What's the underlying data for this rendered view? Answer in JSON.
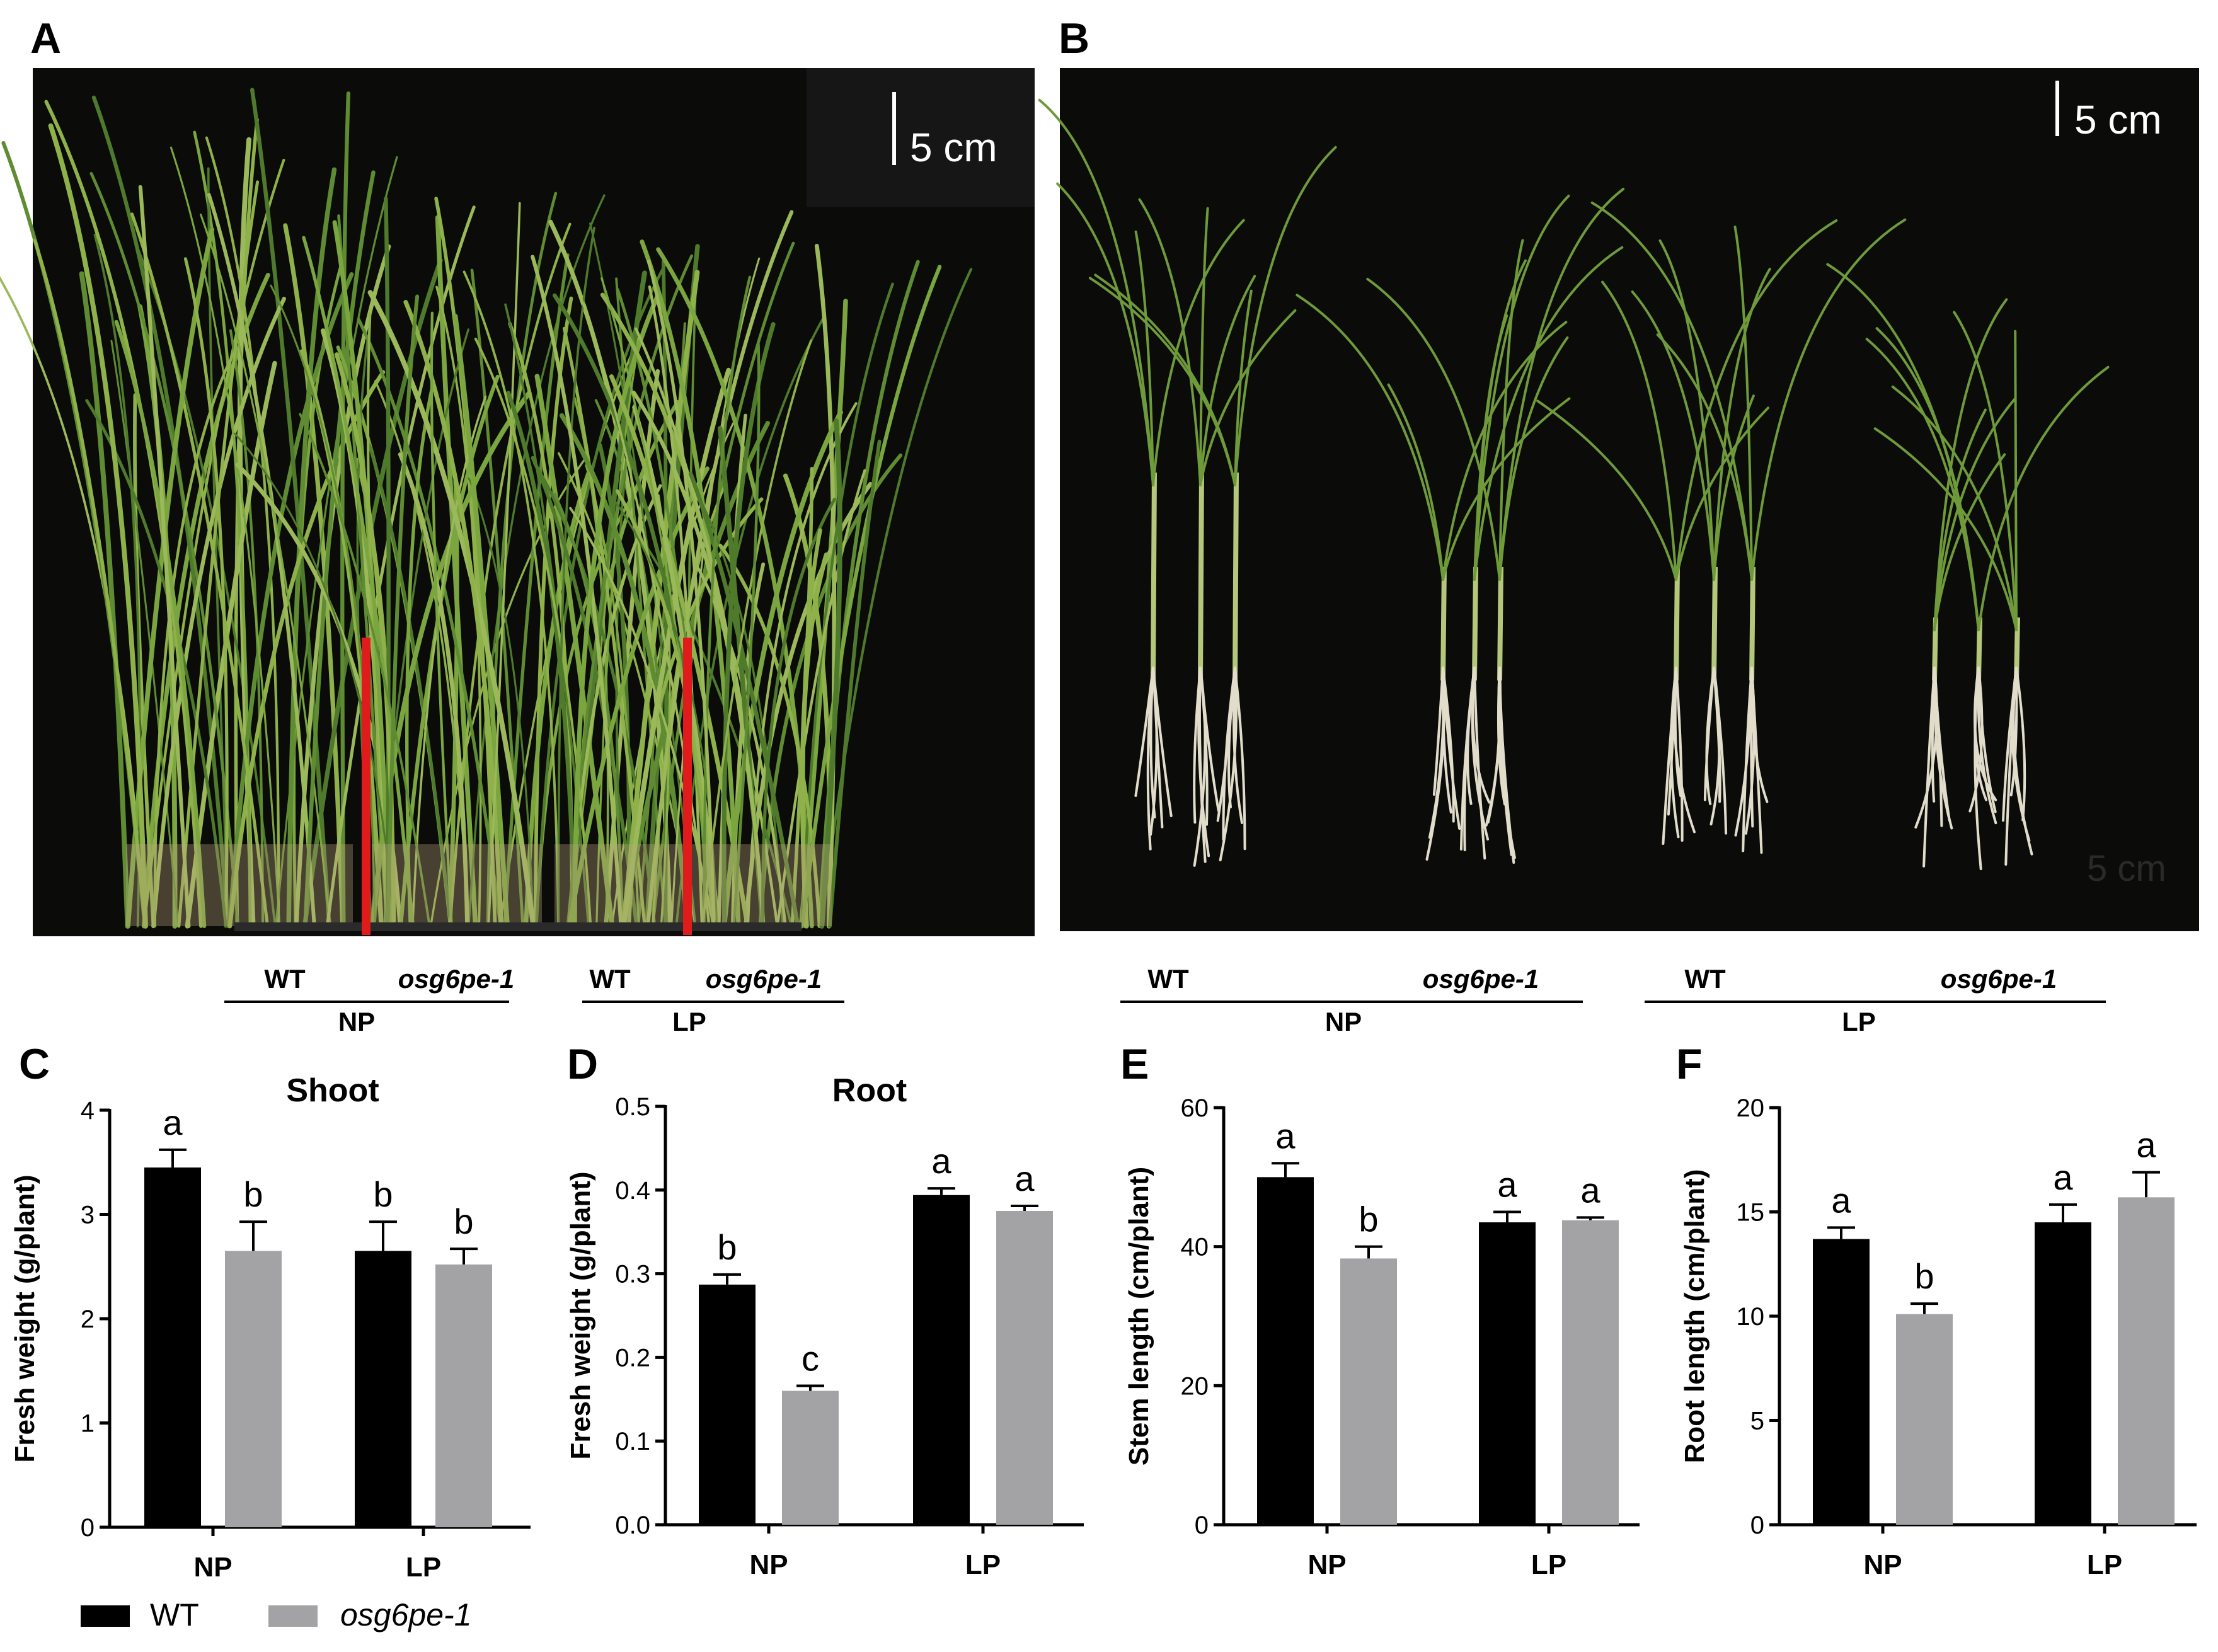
{
  "panel_letters": [
    "A",
    "B",
    "C",
    "D",
    "E",
    "F"
  ],
  "photos": {
    "A": {
      "scale_bar": "5 cm",
      "groups": [
        {
          "condition": "NP",
          "genotypes": [
            "WT",
            "osg6pe-1"
          ]
        },
        {
          "condition": "LP",
          "genotypes": [
            "WT",
            "osg6pe-1"
          ]
        }
      ],
      "colors": {
        "background": "#0b0c0a",
        "divider": "#e01b1b",
        "plant": "#6f9a3a"
      }
    },
    "B": {
      "scale_bar": "5 cm",
      "corner_text": "5 cm",
      "groups": [
        {
          "condition": "NP",
          "genotypes": [
            "WT",
            "osg6pe-1"
          ]
        },
        {
          "condition": "LP",
          "genotypes": [
            "WT",
            "osg6pe-1"
          ]
        }
      ],
      "colors": {
        "background": "#0b0c0a",
        "plant": "#6f9a3a",
        "root": "#e2dccb"
      }
    }
  },
  "legend": {
    "items": [
      {
        "label": "WT",
        "color": "#000000"
      },
      {
        "label": "osg6pe-1",
        "color": "#a3a3a6"
      }
    ]
  },
  "chart_data": [
    {
      "panel": "C",
      "type": "bar",
      "title": "Shoot",
      "ylabel": "Fresh weight (g/plant)",
      "categories": [
        "NP",
        "LP"
      ],
      "ylim": [
        0,
        4
      ],
      "yticks": [
        "0",
        "1",
        "2",
        "3",
        "4"
      ],
      "series": [
        {
          "name": "WT",
          "color": "#000000",
          "values": [
            3.45,
            2.65
          ],
          "errors": [
            0.17,
            0.28
          ],
          "letters": [
            "a",
            "b"
          ]
        },
        {
          "name": "osg6pe-1",
          "color": "#a3a3a6",
          "values": [
            2.65,
            2.52
          ],
          "errors": [
            0.28,
            0.15
          ],
          "letters": [
            "b",
            "b"
          ]
        }
      ]
    },
    {
      "panel": "D",
      "type": "bar",
      "title": "Root",
      "ylabel": "Fresh weight (g/plant)",
      "categories": [
        "NP",
        "LP"
      ],
      "ylim": [
        0,
        0.5
      ],
      "yticks": [
        "0.0",
        "0.1",
        "0.2",
        "0.3",
        "0.4",
        "0.5"
      ],
      "series": [
        {
          "name": "WT",
          "color": "#000000",
          "values": [
            0.287,
            0.394
          ],
          "errors": [
            0.012,
            0.008
          ],
          "letters": [
            "b",
            "a"
          ]
        },
        {
          "name": "osg6pe-1",
          "color": "#a3a3a6",
          "values": [
            0.16,
            0.375
          ],
          "errors": [
            0.006,
            0.006
          ],
          "letters": [
            "c",
            "a"
          ]
        }
      ]
    },
    {
      "panel": "E",
      "type": "bar",
      "title": "",
      "ylabel": "Stem length (cm/plant)",
      "categories": [
        "NP",
        "LP"
      ],
      "ylim": [
        0,
        60
      ],
      "yticks": [
        "0",
        "20",
        "40",
        "60"
      ],
      "series": [
        {
          "name": "WT",
          "color": "#000000",
          "values": [
            50.0,
            43.5
          ],
          "errors": [
            2.0,
            1.5
          ],
          "letters": [
            "a",
            "a"
          ]
        },
        {
          "name": "osg6pe-1",
          "color": "#a3a3a6",
          "values": [
            38.3,
            43.8
          ],
          "errors": [
            1.7,
            0.4
          ],
          "letters": [
            "b",
            "a"
          ]
        }
      ]
    },
    {
      "panel": "F",
      "type": "bar",
      "title": "",
      "ylabel": "Root length (cm/plant)",
      "categories": [
        "NP",
        "LP"
      ],
      "ylim": [
        0,
        20
      ],
      "yticks": [
        "0",
        "5",
        "10",
        "15",
        "20"
      ],
      "series": [
        {
          "name": "WT",
          "color": "#000000",
          "values": [
            13.7,
            14.5
          ],
          "errors": [
            0.55,
            0.85
          ],
          "letters": [
            "a",
            "a"
          ]
        },
        {
          "name": "osg6pe-1",
          "color": "#a3a3a6",
          "values": [
            10.1,
            15.7
          ],
          "errors": [
            0.5,
            1.2
          ],
          "letters": [
            "b",
            "a"
          ]
        }
      ]
    }
  ]
}
